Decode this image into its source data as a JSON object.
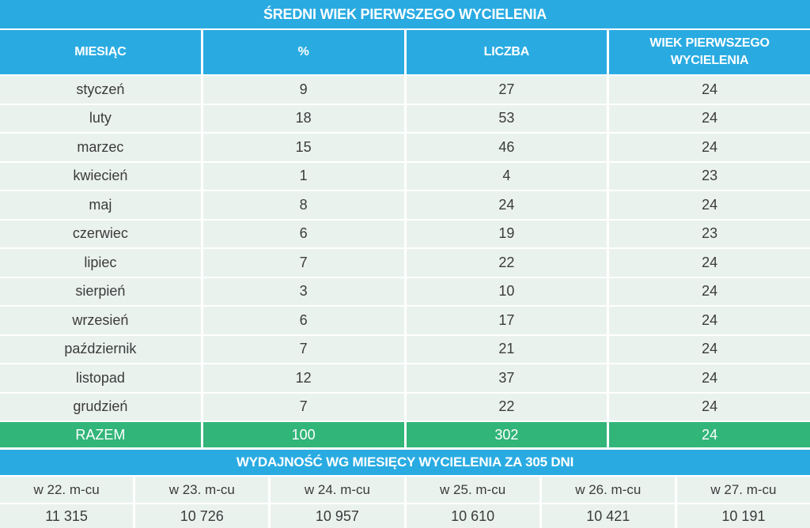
{
  "chart_data": [
    {
      "type": "table",
      "title": "ŚREDNI WIEK PIERWSZEGO WYCIELENIA",
      "columns": [
        "MIESIĄC",
        "%",
        "LICZBA",
        "WIEK PIERWSZEGO WYCIELENIA"
      ],
      "rows": [
        [
          "styczeń",
          "9",
          "27",
          "24"
        ],
        [
          "luty",
          "18",
          "53",
          "24"
        ],
        [
          "marzec",
          "15",
          "46",
          "24"
        ],
        [
          "kwiecień",
          "1",
          "4",
          "23"
        ],
        [
          "maj",
          "8",
          "24",
          "24"
        ],
        [
          "czerwiec",
          "6",
          "19",
          "23"
        ],
        [
          "lipiec",
          "7",
          "22",
          "24"
        ],
        [
          "sierpień",
          "3",
          "10",
          "24"
        ],
        [
          "wrzesień",
          "6",
          "17",
          "24"
        ],
        [
          "październik",
          "7",
          "21",
          "24"
        ],
        [
          "listopad",
          "12",
          "37",
          "24"
        ],
        [
          "grudzień",
          "7",
          "22",
          "24"
        ]
      ],
      "total_row": [
        "RAZEM",
        "100",
        "302",
        "24"
      ]
    },
    {
      "type": "table",
      "title": "WYDAJNOŚĆ WG MIESIĘCY WYCIELENIA ZA 305 DNI",
      "columns": [
        "w 22. m-cu",
        "w 23. m-cu",
        "w 24. m-cu",
        "w 25. m-cu",
        "w 26. m-cu",
        "w 27. m-cu"
      ],
      "values": [
        "11 315",
        "10 726",
        "10 957",
        "10 610",
        "10 421",
        "10 191"
      ]
    }
  ],
  "colors": {
    "header_cyan": "#29abe2",
    "total_green": "#32b579",
    "row_bg": "#eaf2ee",
    "text_dark": "#3b3b3b",
    "text_light": "#ffffff"
  }
}
